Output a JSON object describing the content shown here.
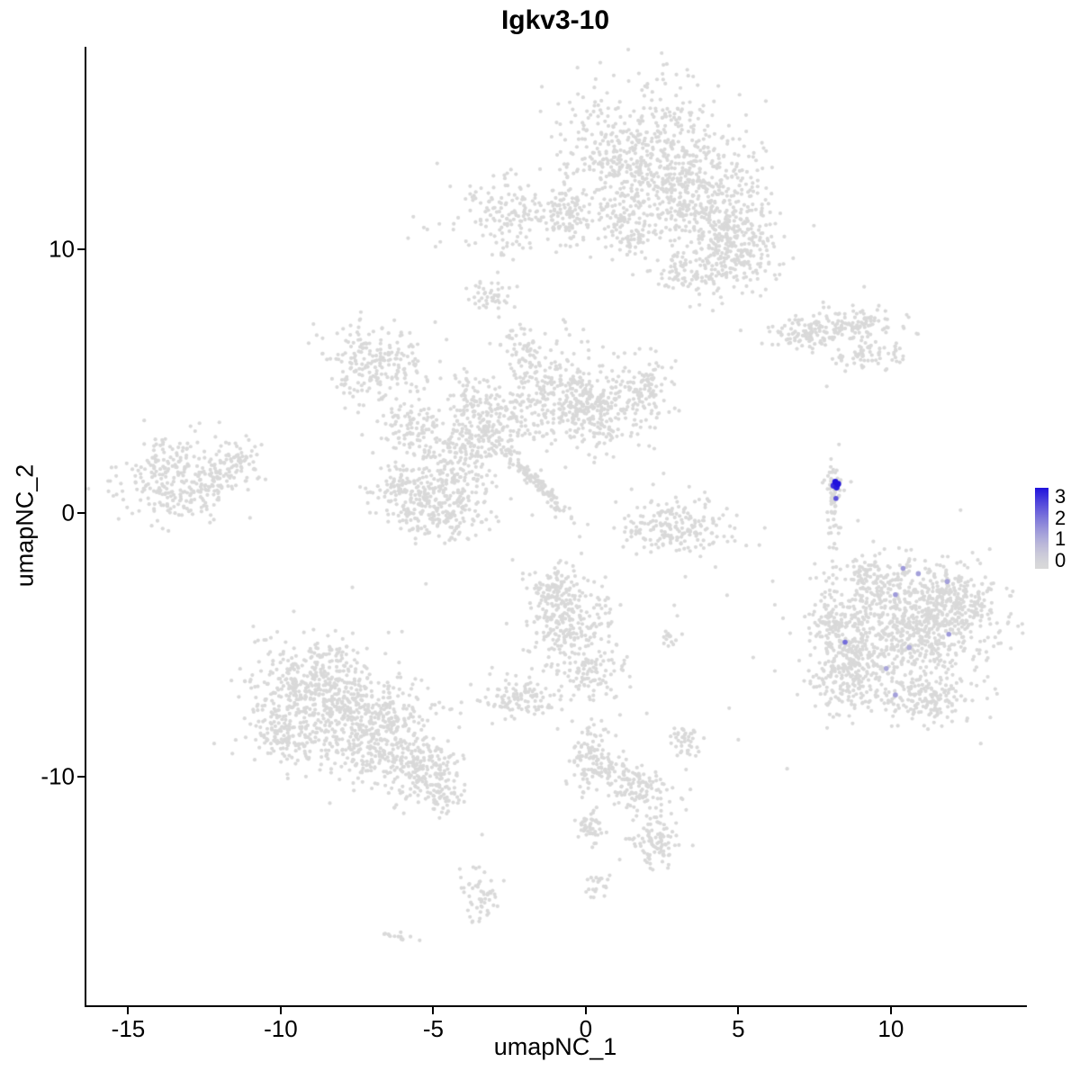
{
  "chart_data": {
    "type": "scatter",
    "title": "Igkv3-10",
    "xlabel": "umapNC_1",
    "ylabel": "umapNC_2",
    "x_ticks": [
      -15,
      -10,
      -5,
      0,
      5,
      10
    ],
    "y_ticks": [
      -10,
      0,
      10
    ],
    "xlim": [
      -16.4,
      14.43
    ],
    "ylim": [
      -18.67,
      17.68
    ],
    "grid": false,
    "legend": {
      "position": "right",
      "labels": [
        "3",
        "2",
        "1",
        "0"
      ],
      "min": 0,
      "max": 3
    },
    "colors": {
      "low": "#D9D9D9",
      "high": "#2012DC",
      "axis": "#000000"
    },
    "point_radius": 2.1,
    "seed": 7,
    "background_clusters": [
      {
        "x": 1.9,
        "y": 13.6,
        "sx": 1.3,
        "sy": 1.4,
        "n": 600
      },
      {
        "x": 4.1,
        "y": 11.9,
        "sx": 1.0,
        "sy": 1.1,
        "n": 350
      },
      {
        "x": 4.8,
        "y": 9.9,
        "sx": 0.7,
        "sy": 0.8,
        "n": 250
      },
      {
        "x": 1.4,
        "y": 10.8,
        "sx": 0.5,
        "sy": 0.6,
        "n": 100
      },
      {
        "x": 3.2,
        "y": 9.2,
        "sx": 0.4,
        "sy": 0.4,
        "n": 60
      },
      {
        "x": -2.3,
        "y": 11.4,
        "sx": 1.2,
        "sy": 0.7,
        "n": 190
      },
      {
        "x": -0.6,
        "y": 11.3,
        "sx": 0.4,
        "sy": 0.5,
        "n": 60
      },
      {
        "x": -3.1,
        "y": 8.2,
        "sx": 0.35,
        "sy": 0.3,
        "n": 45
      },
      {
        "x": 7.2,
        "y": 6.8,
        "sx": 0.7,
        "sy": 0.3,
        "n": 100
      },
      {
        "x": 8.8,
        "y": 7.2,
        "sx": 0.8,
        "sy": 0.35,
        "n": 110
      },
      {
        "x": 9.3,
        "y": 6.0,
        "sx": 0.6,
        "sy": 0.3,
        "n": 70
      },
      {
        "x": -6.8,
        "y": 5.6,
        "sx": 0.9,
        "sy": 0.8,
        "n": 220
      },
      {
        "x": -5.8,
        "y": 3.3,
        "sx": 0.5,
        "sy": 0.6,
        "n": 90
      },
      {
        "x": -4.2,
        "y": 2.4,
        "sx": 0.7,
        "sy": 0.8,
        "n": 200
      },
      {
        "x": -2.9,
        "y": 3.4,
        "sx": 0.5,
        "sy": 0.6,
        "n": 110
      },
      {
        "x": -1.2,
        "y": 4.6,
        "sx": 0.8,
        "sy": 0.9,
        "n": 260
      },
      {
        "x": 0.3,
        "y": 3.8,
        "sx": 0.6,
        "sy": 0.8,
        "n": 200
      },
      {
        "x": 1.8,
        "y": 4.5,
        "sx": 0.5,
        "sy": 0.7,
        "n": 130
      },
      {
        "x": -2.0,
        "y": 6.3,
        "sx": 0.35,
        "sy": 0.4,
        "n": 50
      },
      {
        "x": -3.8,
        "y": 4.4,
        "sx": 0.35,
        "sy": 0.5,
        "n": 60
      },
      {
        "x": -13.2,
        "y": 1.2,
        "sx": 1.05,
        "sy": 0.75,
        "n": 300
      },
      {
        "x": -11.5,
        "y": 2.05,
        "sx": 0.45,
        "sy": 0.4,
        "n": 70
      },
      {
        "x": -4.6,
        "y": 0.3,
        "sx": 0.8,
        "sy": 0.65,
        "n": 230
      },
      {
        "x": -5.9,
        "y": 0.85,
        "sx": 0.5,
        "sy": 0.5,
        "n": 110
      },
      {
        "x": -1.75,
        "y": 1.3,
        "sx": 1.05,
        "sy": 0.12,
        "n": 130,
        "rot": -49
      },
      {
        "x": 3.05,
        "y": -0.5,
        "sx": 0.9,
        "sy": 0.5,
        "n": 200
      },
      {
        "x": 8.1,
        "y": 0.3,
        "sx": 0.12,
        "sy": 0.85,
        "n": 55
      },
      {
        "x": 8.2,
        "y": 1.15,
        "sx": 0.15,
        "sy": 0.15,
        "n": 20
      },
      {
        "x": 10.6,
        "y": -4.4,
        "sx": 1.4,
        "sy": 1.3,
        "n": 800
      },
      {
        "x": 12.05,
        "y": -3.4,
        "sx": 0.6,
        "sy": 0.7,
        "n": 200
      },
      {
        "x": 8.5,
        "y": -6.0,
        "sx": 0.6,
        "sy": 0.8,
        "n": 220
      },
      {
        "x": 8.1,
        "y": -4.1,
        "sx": 0.35,
        "sy": 0.6,
        "n": 90
      },
      {
        "x": 11.2,
        "y": -7.0,
        "sx": 0.7,
        "sy": 0.4,
        "n": 130
      },
      {
        "x": 9.25,
        "y": -2.4,
        "sx": 0.5,
        "sy": 0.4,
        "n": 90
      },
      {
        "x": -0.6,
        "y": -4.1,
        "sx": 0.75,
        "sy": 0.95,
        "n": 260
      },
      {
        "x": 0.1,
        "y": -6.0,
        "sx": 0.5,
        "sy": 0.45,
        "n": 90
      },
      {
        "x": -1.05,
        "y": -2.9,
        "sx": 0.4,
        "sy": 0.4,
        "n": 70
      },
      {
        "x": 2.8,
        "y": -4.9,
        "sx": 0.18,
        "sy": 0.25,
        "n": 14
      },
      {
        "x": -8.7,
        "y": -6.65,
        "sx": 1.1,
        "sy": 0.95,
        "n": 500
      },
      {
        "x": -7.0,
        "y": -8.35,
        "sx": 1.0,
        "sy": 0.85,
        "n": 400
      },
      {
        "x": -5.3,
        "y": -9.7,
        "sx": 0.6,
        "sy": 0.6,
        "n": 180
      },
      {
        "x": -9.75,
        "y": -8.5,
        "sx": 0.6,
        "sy": 0.55,
        "n": 140
      },
      {
        "x": -4.6,
        "y": -10.75,
        "sx": 0.3,
        "sy": 0.35,
        "n": 50
      },
      {
        "x": -2.1,
        "y": -7.0,
        "sx": 0.6,
        "sy": 0.35,
        "n": 110
      },
      {
        "x": 0.3,
        "y": -9.4,
        "sx": 0.45,
        "sy": 0.7,
        "n": 140
      },
      {
        "x": 1.8,
        "y": -10.5,
        "sx": 0.5,
        "sy": 0.5,
        "n": 110
      },
      {
        "x": 2.3,
        "y": -12.45,
        "sx": 0.4,
        "sy": 0.55,
        "n": 100
      },
      {
        "x": 0.1,
        "y": -11.9,
        "sx": 0.25,
        "sy": 0.35,
        "n": 45
      },
      {
        "x": 3.3,
        "y": -8.6,
        "sx": 0.25,
        "sy": 0.3,
        "n": 40
      },
      {
        "x": -3.5,
        "y": -14.4,
        "sx": 0.3,
        "sy": 0.45,
        "n": 55
      },
      {
        "x": 0.4,
        "y": -14.15,
        "sx": 0.18,
        "sy": 0.25,
        "n": 22
      },
      {
        "x": -6.15,
        "y": -16.05,
        "sx": 0.3,
        "sy": 0.12,
        "n": 14
      }
    ],
    "background_singles": [
      [
        7.9,
        4.8
      ],
      [
        4.25,
        -2.05
      ],
      [
        4.7,
        -7.4
      ],
      [
        3.0,
        -3.9
      ],
      [
        2.9,
        -3.5
      ],
      [
        2.55,
        1.5
      ],
      [
        1.5,
        0.9
      ],
      [
        4.3,
        -0.9
      ],
      [
        -0.2,
        -0.9
      ],
      [
        5.0,
        -8.6
      ],
      [
        -10.9,
        -4.3
      ],
      [
        0.3,
        2.1
      ],
      [
        6.6,
        -9.7
      ],
      [
        2.0,
        -7.6
      ],
      [
        8.3,
        2.6
      ],
      [
        -3.4,
        -12.2
      ]
    ],
    "expressing_cells": [
      {
        "x": 8.18,
        "y": 1.18,
        "value": 3.0
      },
      {
        "x": 8.27,
        "y": 1.1,
        "value": 3.0
      },
      {
        "x": 8.12,
        "y": 1.04,
        "value": 2.7
      },
      {
        "x": 8.22,
        "y": 0.97,
        "value": 2.9
      },
      {
        "x": 8.2,
        "y": 0.55,
        "value": 2.3
      },
      {
        "x": 10.4,
        "y": -2.1,
        "value": 1.4
      },
      {
        "x": 10.9,
        "y": -2.3,
        "value": 1.3
      },
      {
        "x": 11.85,
        "y": -2.6,
        "value": 1.3
      },
      {
        "x": 10.15,
        "y": -3.1,
        "value": 1.4
      },
      {
        "x": 11.9,
        "y": -4.6,
        "value": 1.4
      },
      {
        "x": 10.6,
        "y": -5.1,
        "value": 1.1
      },
      {
        "x": 8.5,
        "y": -4.9,
        "value": 2.0
      },
      {
        "x": 9.85,
        "y": -5.9,
        "value": 1.2
      },
      {
        "x": 10.15,
        "y": -6.9,
        "value": 1.3
      }
    ]
  }
}
